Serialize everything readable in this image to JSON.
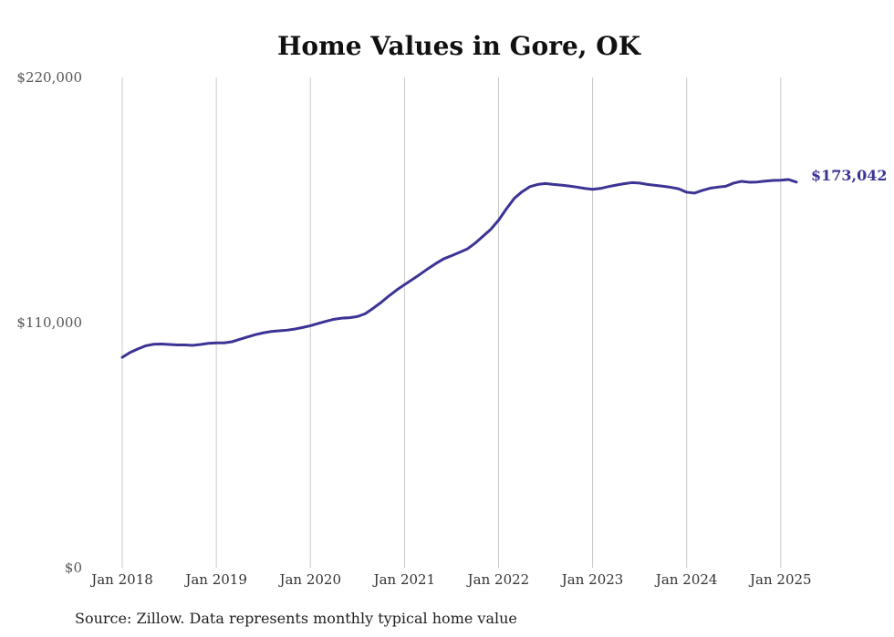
{
  "chart_data": {
    "type": "line",
    "title": "Home Values in Gore, OK",
    "xlabel": "",
    "ylabel": "",
    "ylim": [
      0,
      220000
    ],
    "yticks": [
      {
        "value": 0,
        "label": "$0"
      },
      {
        "value": 110000,
        "label": "$110,000"
      },
      {
        "value": 220000,
        "label": "$220,000"
      }
    ],
    "xlim": [
      "2018-01",
      "2025-03"
    ],
    "xticks": [
      {
        "date": "2018-01",
        "label": "Jan 2018"
      },
      {
        "date": "2019-01",
        "label": "Jan 2019"
      },
      {
        "date": "2020-01",
        "label": "Jan 2020"
      },
      {
        "date": "2021-01",
        "label": "Jan 2021"
      },
      {
        "date": "2022-01",
        "label": "Jan 2022"
      },
      {
        "date": "2023-01",
        "label": "Jan 2023"
      },
      {
        "date": "2024-01",
        "label": "Jan 2024"
      },
      {
        "date": "2025-01",
        "label": "Jan 2025"
      }
    ],
    "grid": "vertical",
    "series": [
      {
        "color": "#3b3495",
        "points": [
          [
            "2018-01",
            94400
          ],
          [
            "2018-02",
            96600
          ],
          [
            "2018-03",
            98200
          ],
          [
            "2018-04",
            99600
          ],
          [
            "2018-05",
            100300
          ],
          [
            "2018-06",
            100400
          ],
          [
            "2018-07",
            100200
          ],
          [
            "2018-08",
            100000
          ],
          [
            "2018-09",
            100000
          ],
          [
            "2018-10",
            99800
          ],
          [
            "2018-11",
            100200
          ],
          [
            "2018-12",
            100700
          ],
          [
            "2019-01",
            100900
          ],
          [
            "2019-02",
            100900
          ],
          [
            "2019-03",
            101400
          ],
          [
            "2019-04",
            102500
          ],
          [
            "2019-05",
            103600
          ],
          [
            "2019-06",
            104600
          ],
          [
            "2019-07",
            105400
          ],
          [
            "2019-08",
            106000
          ],
          [
            "2019-09",
            106300
          ],
          [
            "2019-10",
            106600
          ],
          [
            "2019-11",
            107100
          ],
          [
            "2019-12",
            107800
          ],
          [
            "2020-01",
            108600
          ],
          [
            "2020-02",
            109600
          ],
          [
            "2020-03",
            110600
          ],
          [
            "2020-04",
            111500
          ],
          [
            "2020-05",
            112000
          ],
          [
            "2020-06",
            112200
          ],
          [
            "2020-07",
            112700
          ],
          [
            "2020-08",
            114000
          ],
          [
            "2020-09",
            116400
          ],
          [
            "2020-10",
            119000
          ],
          [
            "2020-11",
            121900
          ],
          [
            "2020-12",
            124600
          ],
          [
            "2021-01",
            127000
          ],
          [
            "2021-02",
            129300
          ],
          [
            "2021-03",
            131700
          ],
          [
            "2021-04",
            134200
          ],
          [
            "2021-05",
            136500
          ],
          [
            "2021-06",
            138600
          ],
          [
            "2021-07",
            140000
          ],
          [
            "2021-08",
            141500
          ],
          [
            "2021-09",
            143000
          ],
          [
            "2021-10",
            145600
          ],
          [
            "2021-11",
            148700
          ],
          [
            "2021-12",
            151800
          ],
          [
            "2022-01",
            155900
          ],
          [
            "2022-02",
            161000
          ],
          [
            "2022-03",
            165700
          ],
          [
            "2022-04",
            168700
          ],
          [
            "2022-05",
            171000
          ],
          [
            "2022-06",
            172000
          ],
          [
            "2022-07",
            172400
          ],
          [
            "2022-08",
            172000
          ],
          [
            "2022-09",
            171700
          ],
          [
            "2022-10",
            171300
          ],
          [
            "2022-11",
            170800
          ],
          [
            "2022-12",
            170200
          ],
          [
            "2023-01",
            169800
          ],
          [
            "2023-02",
            170200
          ],
          [
            "2023-03",
            171000
          ],
          [
            "2023-04",
            171700
          ],
          [
            "2023-05",
            172300
          ],
          [
            "2023-06",
            172800
          ],
          [
            "2023-07",
            172600
          ],
          [
            "2023-08",
            172000
          ],
          [
            "2023-09",
            171600
          ],
          [
            "2023-10",
            171200
          ],
          [
            "2023-11",
            170700
          ],
          [
            "2023-12",
            170000
          ],
          [
            "2024-01",
            168500
          ],
          [
            "2024-02",
            168100
          ],
          [
            "2024-03",
            169300
          ],
          [
            "2024-04",
            170300
          ],
          [
            "2024-05",
            170800
          ],
          [
            "2024-06",
            171200
          ],
          [
            "2024-07",
            172600
          ],
          [
            "2024-08",
            173400
          ],
          [
            "2024-09",
            173000
          ],
          [
            "2024-10",
            173100
          ],
          [
            "2024-11",
            173500
          ],
          [
            "2024-12",
            173800
          ],
          [
            "2025-01",
            173900
          ],
          [
            "2025-02",
            174200
          ],
          [
            "2025-03",
            173042
          ]
        ]
      }
    ],
    "end_label": "$173,042",
    "source_note": "Source: Zillow. Data represents monthly typical home value"
  }
}
